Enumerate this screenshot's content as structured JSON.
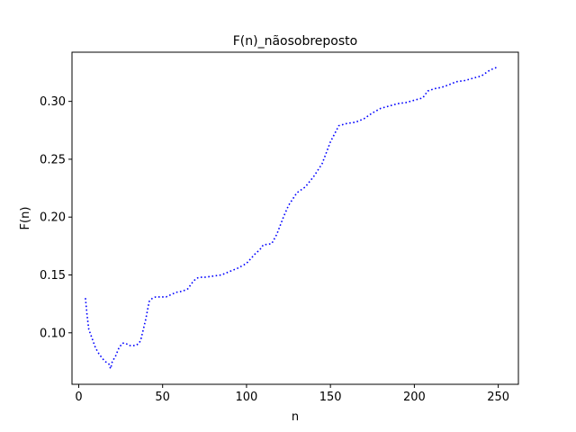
{
  "chart_data": {
    "type": "line",
    "title": "F(n)_nãosobreposto",
    "xlabel": "n",
    "ylabel": "F(n)",
    "xlim": [
      -4,
      262
    ],
    "ylim": [
      0.0555,
      0.3425
    ],
    "xticks": [
      0,
      50,
      100,
      150,
      200,
      250
    ],
    "xtick_labels": [
      "0",
      "50",
      "100",
      "150",
      "200",
      "250"
    ],
    "yticks": [
      0.1,
      0.15,
      0.2,
      0.25,
      0.3
    ],
    "ytick_labels": [
      "0.10",
      "0.15",
      "0.20",
      "0.25",
      "0.30"
    ],
    "grid": false,
    "line_style": "dotted",
    "series": [
      {
        "color": "#0000ff",
        "x": [
          4,
          5,
          6,
          8,
          10,
          12,
          14,
          16,
          18,
          19,
          20,
          22,
          24,
          26,
          28,
          30,
          32,
          34,
          36,
          37,
          38,
          40,
          42,
          44,
          46,
          48,
          50,
          52,
          55,
          58,
          62,
          65,
          68,
          70,
          72,
          75,
          80,
          85,
          90,
          95,
          100,
          105,
          108,
          110,
          115,
          118,
          122,
          125,
          130,
          135,
          140,
          145,
          150,
          155,
          160,
          165,
          170,
          175,
          180,
          185,
          190,
          195,
          200,
          205,
          208,
          212,
          216,
          220,
          225,
          230,
          235,
          240,
          245,
          250
        ],
        "y": [
          0.13,
          0.115,
          0.103,
          0.095,
          0.087,
          0.082,
          0.078,
          0.075,
          0.073,
          0.069,
          0.075,
          0.08,
          0.087,
          0.091,
          0.091,
          0.089,
          0.089,
          0.089,
          0.091,
          0.094,
          0.1,
          0.112,
          0.127,
          0.13,
          0.131,
          0.131,
          0.131,
          0.131,
          0.133,
          0.135,
          0.136,
          0.138,
          0.144,
          0.147,
          0.148,
          0.148,
          0.149,
          0.15,
          0.153,
          0.156,
          0.16,
          0.168,
          0.172,
          0.176,
          0.177,
          0.185,
          0.2,
          0.21,
          0.221,
          0.226,
          0.235,
          0.246,
          0.265,
          0.279,
          0.281,
          0.282,
          0.285,
          0.29,
          0.294,
          0.296,
          0.298,
          0.299,
          0.301,
          0.303,
          0.309,
          0.311,
          0.312,
          0.314,
          0.317,
          0.318,
          0.32,
          0.322,
          0.327,
          0.33
        ]
      }
    ]
  }
}
